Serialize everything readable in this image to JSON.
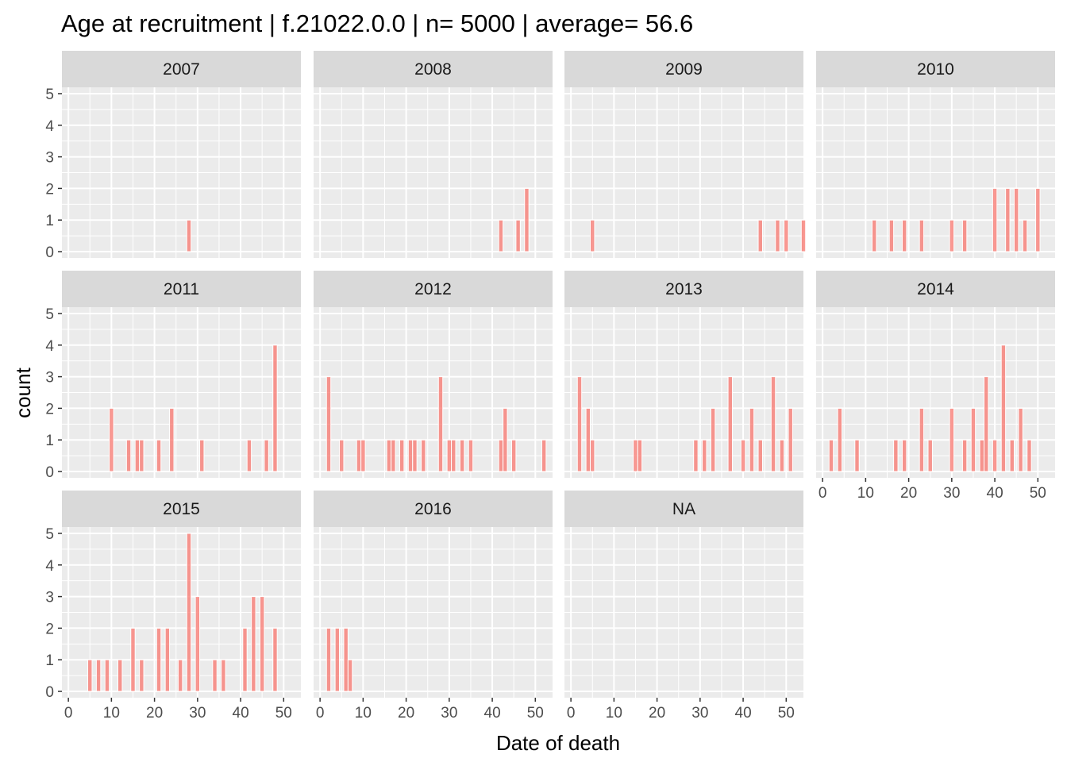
{
  "chart_data": {
    "type": "bar",
    "title": "Age at recruitment | f.21022.0.0 | n= 5000  | average= 56.6",
    "xlabel": "Date of death",
    "ylabel": "count",
    "xlim": [
      -1.5,
      54
    ],
    "ylim": [
      0,
      5
    ],
    "x_ticks": [
      0,
      10,
      20,
      30,
      40,
      50
    ],
    "y_ticks": [
      0,
      1,
      2,
      3,
      4,
      5
    ],
    "bar_color": "#F8766D",
    "bar_outline": "#ffffff",
    "panel_background": "#EBEBEB",
    "strip_background": "#D9D9D9",
    "grid": true,
    "facets": [
      {
        "label": "2007",
        "bars": [
          [
            28,
            1
          ]
        ]
      },
      {
        "label": "2008",
        "bars": [
          [
            42,
            1
          ],
          [
            46,
            1
          ],
          [
            48,
            2
          ]
        ]
      },
      {
        "label": "2009",
        "bars": [
          [
            5,
            1
          ],
          [
            44,
            1
          ],
          [
            48,
            1
          ],
          [
            50,
            1
          ],
          [
            54,
            1
          ]
        ]
      },
      {
        "label": "2010",
        "bars": [
          [
            12,
            1
          ],
          [
            16,
            1
          ],
          [
            19,
            1
          ],
          [
            23,
            1
          ],
          [
            30,
            1
          ],
          [
            33,
            1
          ],
          [
            40,
            2
          ],
          [
            43,
            2
          ],
          [
            45,
            2
          ],
          [
            47,
            1
          ],
          [
            50,
            2
          ]
        ]
      },
      {
        "label": "2011",
        "bars": [
          [
            10,
            2
          ],
          [
            14,
            1
          ],
          [
            16,
            1
          ],
          [
            17,
            1
          ],
          [
            21,
            1
          ],
          [
            24,
            2
          ],
          [
            31,
            1
          ],
          [
            42,
            1
          ],
          [
            46,
            1
          ],
          [
            48,
            4
          ]
        ]
      },
      {
        "label": "2012",
        "bars": [
          [
            2,
            3
          ],
          [
            5,
            1
          ],
          [
            9,
            1
          ],
          [
            10,
            1
          ],
          [
            16,
            1
          ],
          [
            17,
            1
          ],
          [
            19,
            1
          ],
          [
            21,
            1
          ],
          [
            22,
            1
          ],
          [
            24,
            1
          ],
          [
            28,
            3
          ],
          [
            30,
            1
          ],
          [
            31,
            1
          ],
          [
            33,
            1
          ],
          [
            35,
            1
          ],
          [
            42,
            1
          ],
          [
            43,
            2
          ],
          [
            45,
            1
          ],
          [
            52,
            1
          ]
        ]
      },
      {
        "label": "2013",
        "bars": [
          [
            2,
            3
          ],
          [
            4,
            2
          ],
          [
            5,
            1
          ],
          [
            15,
            1
          ],
          [
            16,
            1
          ],
          [
            29,
            1
          ],
          [
            31,
            1
          ],
          [
            33,
            2
          ],
          [
            37,
            3
          ],
          [
            40,
            1
          ],
          [
            42,
            2
          ],
          [
            44,
            1
          ],
          [
            47,
            3
          ],
          [
            49,
            1
          ],
          [
            51,
            2
          ]
        ]
      },
      {
        "label": "2014",
        "bars": [
          [
            2,
            1
          ],
          [
            4,
            2
          ],
          [
            8,
            1
          ],
          [
            17,
            1
          ],
          [
            19,
            1
          ],
          [
            23,
            2
          ],
          [
            25,
            1
          ],
          [
            30,
            2
          ],
          [
            33,
            1
          ],
          [
            35,
            2
          ],
          [
            37,
            1
          ],
          [
            38,
            3
          ],
          [
            40,
            1
          ],
          [
            42,
            4
          ],
          [
            44,
            1
          ],
          [
            46,
            2
          ],
          [
            48,
            1
          ]
        ]
      },
      {
        "label": "2015",
        "bars": [
          [
            5,
            1
          ],
          [
            7,
            1
          ],
          [
            9,
            1
          ],
          [
            12,
            1
          ],
          [
            15,
            2
          ],
          [
            17,
            1
          ],
          [
            21,
            2
          ],
          [
            23,
            2
          ],
          [
            26,
            1
          ],
          [
            28,
            5
          ],
          [
            30,
            3
          ],
          [
            34,
            1
          ],
          [
            36,
            1
          ],
          [
            41,
            2
          ],
          [
            43,
            3
          ],
          [
            45,
            3
          ],
          [
            48,
            2
          ]
        ]
      },
      {
        "label": "2016",
        "bars": [
          [
            2,
            2
          ],
          [
            4,
            2
          ],
          [
            6,
            2
          ],
          [
            7,
            1
          ]
        ]
      },
      {
        "label": "NA",
        "bars": []
      }
    ]
  }
}
